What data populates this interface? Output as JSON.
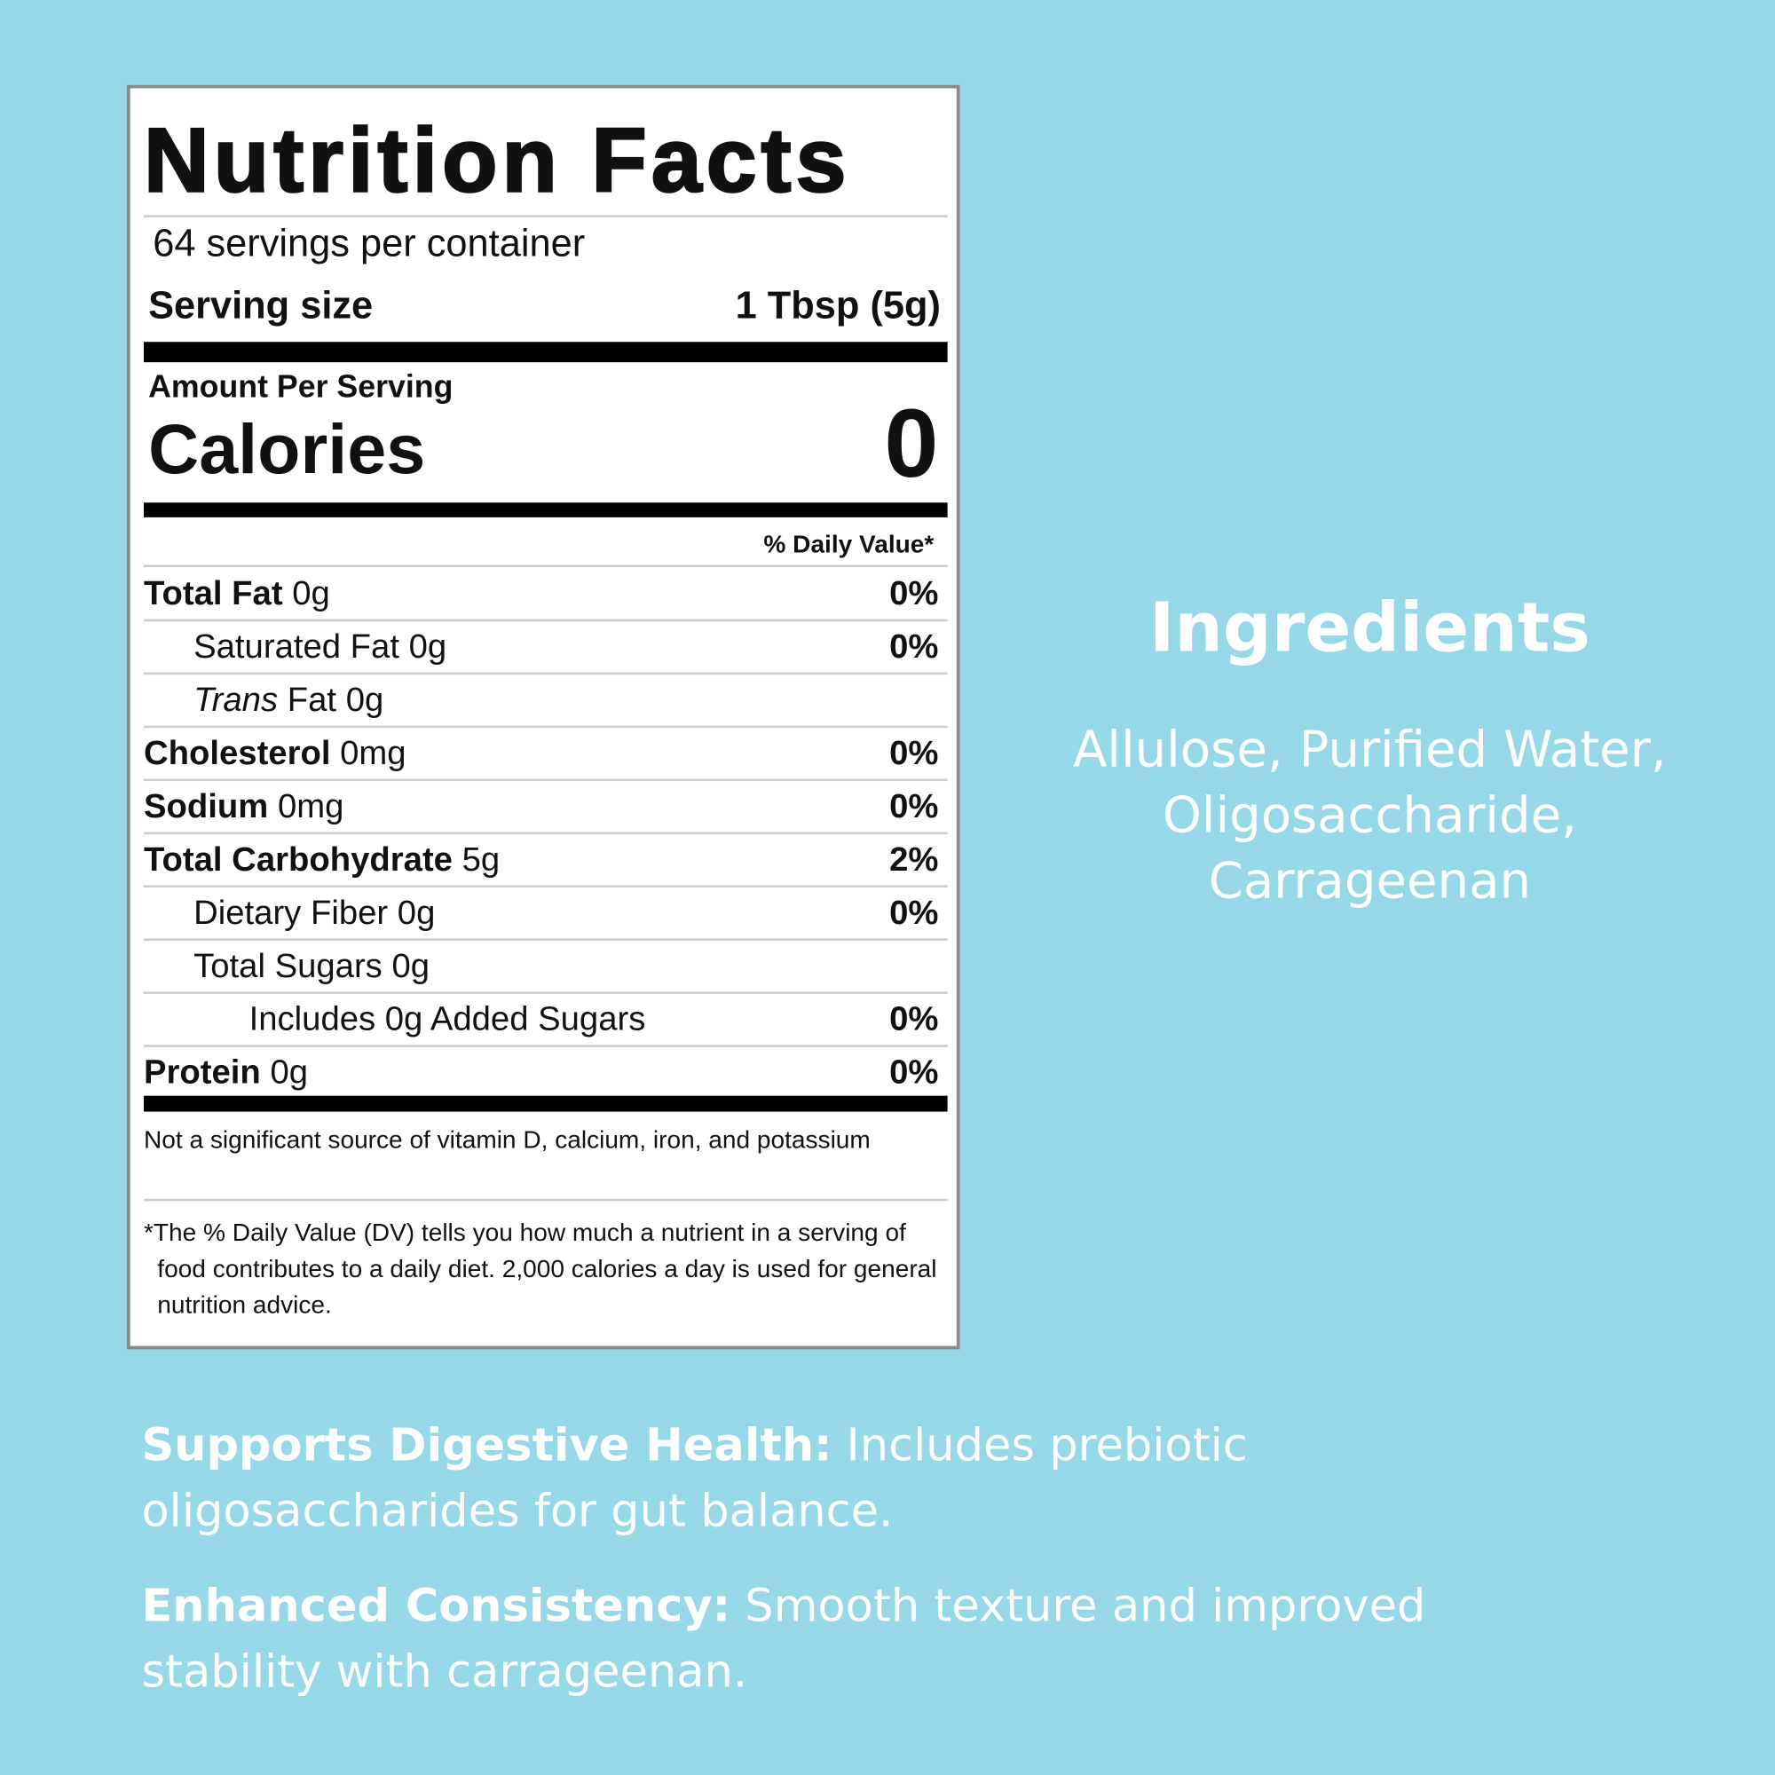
{
  "nutrition_facts": {
    "title": "Nutrition Facts",
    "servings": "64 servings per container",
    "serving_size": {
      "label": "Serving size",
      "value": "1 Tbsp (5g)"
    },
    "amount_per_serving": "Amount Per Serving",
    "calories": {
      "label": "Calories",
      "value": "0"
    },
    "daily_value_header": "% Daily Value*",
    "rows": [
      {
        "name": "Total Fat",
        "amount": "0g",
        "dv": "0%"
      },
      {
        "name": "Saturated Fat",
        "amount": "0g",
        "dv": "0%"
      },
      {
        "name_italic": "Trans",
        "name": "Fat",
        "amount": "0g"
      },
      {
        "name": "Cholesterol",
        "amount": "0mg",
        "dv": "0%"
      },
      {
        "name": "Sodium",
        "amount": "0mg",
        "dv": "0%"
      },
      {
        "name": "Total Carbohydrate",
        "amount": "5g",
        "dv": "2%"
      },
      {
        "name": "Dietary Fiber",
        "amount": "0g",
        "dv": "0%"
      },
      {
        "name": "Total Sugars",
        "amount": "0g"
      },
      {
        "name": "Includes 0g Added Sugars",
        "dv": "0%"
      },
      {
        "name": "Protein",
        "amount": "0g",
        "dv": "0%"
      }
    ],
    "footnote_1": "Not a significant source of vitamin D, calcium, iron, and potassium",
    "footnote_2": "*The % Daily Value (DV) tells you how much a nutrient in a serving of food contributes to a daily diet. 2,000 calories a day is used for general nutrition advice."
  },
  "ingredients": {
    "title": "Ingredients",
    "lines": [
      "Allulose, Purified Water,",
      "Oligosaccharide,",
      "Carrageenan"
    ]
  },
  "features": [
    {
      "title": "Supports Digestive Health:",
      "text": "Includes prebiotic oligosaccharides for gut balance."
    },
    {
      "title": "Enhanced Consistency:",
      "text": "Smooth texture and improved stability with carrageenan."
    }
  ]
}
